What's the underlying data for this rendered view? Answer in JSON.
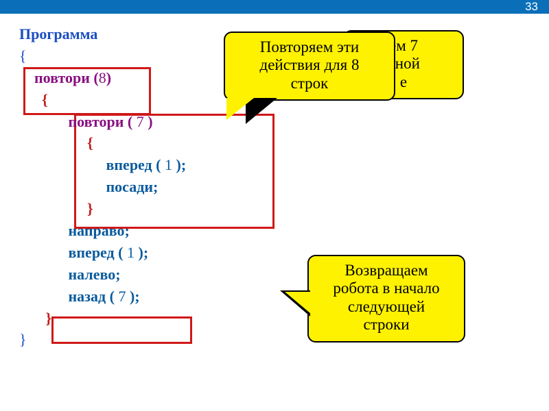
{
  "slide_number": "33",
  "colors": {
    "topbar": "#0a6fb8",
    "callout_fill": "#fff200",
    "callout_border": "#000000",
    "box_border": "#d01818",
    "kw_blue": "#1a4fc0",
    "kw_purple": "#8a0f82",
    "cmd_blue": "#0a5b9e",
    "brace_red": "#c02020"
  },
  "code": {
    "l1": "Программа",
    "l2": "{",
    "indent1": "    ",
    "l3": "повтори (",
    "l3n": "8",
    "l3b": ")",
    "l4": "      {",
    "indent2": "             ",
    "l5": "повтори ( ",
    "l5n": "7",
    "l5b": " )",
    "l6": "                  {",
    "indent3": "                       ",
    "l7": "вперед ( ",
    "l7n": "1",
    "l7b": " );",
    "l8": "посади;",
    "l9": "                  }",
    "l10": "направо;",
    "l11": "вперед ( ",
    "l11n": "1",
    "l11b": " );",
    "l12": "налево;",
    "l13": "назад ( ",
    "l13n": "7",
    "l13b": " );",
    "l14": "       }",
    "l15": "}"
  },
  "callouts": {
    "back_l1": "ем 7",
    "back_l2": "дной",
    "back_l3": "е",
    "front_l1": "Повторяем эти",
    "front_l2": "действия для 8",
    "front_l3": "строк",
    "bottom_l1": "Возвращаем",
    "bottom_l2": "робота в начало",
    "bottom_l3": "следующей",
    "bottom_l4": "строки"
  }
}
